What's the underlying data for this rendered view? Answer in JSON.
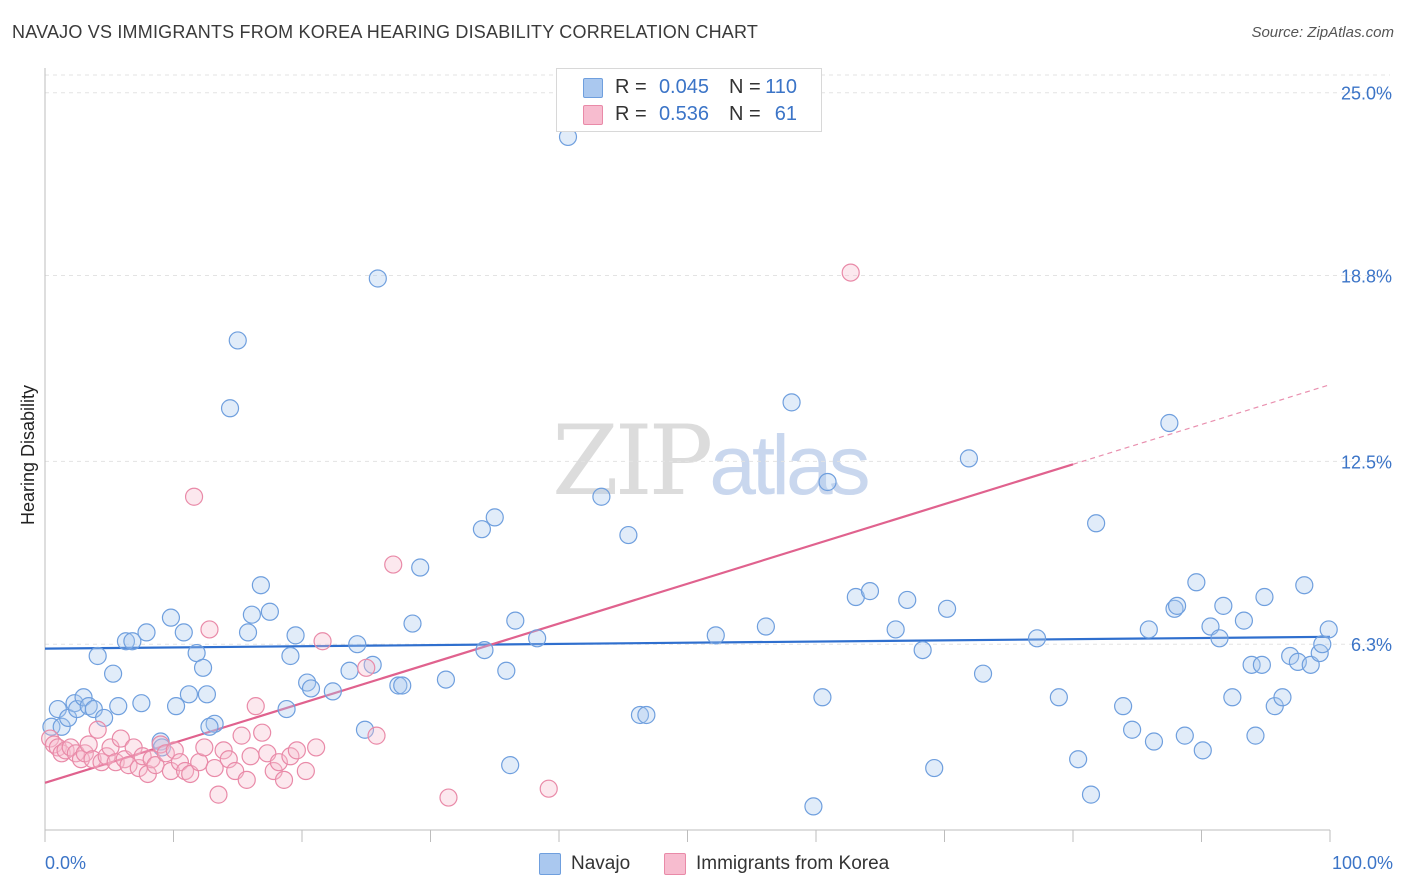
{
  "header": {
    "title": "NAVAJO VS IMMIGRANTS FROM KOREA HEARING DISABILITY CORRELATION CHART",
    "source": "Source: ZipAtlas.com"
  },
  "legend": {
    "rows": [
      {
        "r_label": "R =",
        "r_value": "0.045",
        "n_label": "N =",
        "n_value": "110",
        "color": "#aac8ef",
        "border": "#6f9fde"
      },
      {
        "r_label": "R =",
        "r_value": "0.536",
        "n_label": "N =",
        "n_value": "61",
        "color": "#f7bccf",
        "border": "#e98aa8"
      }
    ]
  },
  "watermark": {
    "part1": "ZIP",
    "part2": "atlas"
  },
  "bottom_legend": [
    {
      "label": "Navajo",
      "color": "#aac8ef",
      "border": "#6f9fde"
    },
    {
      "label": "Immigrants from Korea",
      "color": "#f7bccf",
      "border": "#e98aa8"
    }
  ],
  "chart_data": {
    "type": "scatter",
    "title": "NAVAJO VS IMMIGRANTS FROM KOREA HEARING DISABILITY CORRELATION CHART",
    "xlabel": "",
    "ylabel": "Hearing Disability",
    "xlim": [
      0,
      100
    ],
    "ylim": [
      0,
      25.6
    ],
    "x_tick_labels": [
      "0.0%",
      "100.0%"
    ],
    "y_ticks": [
      6.3,
      12.5,
      18.8,
      25.0
    ],
    "y_tick_labels": [
      "6.3%",
      "12.5%",
      "18.8%",
      "25.0%"
    ],
    "grid": "horizontal dashed",
    "series": [
      {
        "name": "Navajo",
        "color": "#6f9fde",
        "trend": {
          "x": [
            0,
            100
          ],
          "y": [
            6.15,
            6.55
          ],
          "color": "#2f6fce"
        },
        "points": [
          [
            0.5,
            3.5
          ],
          [
            1,
            4.1
          ],
          [
            1.3,
            3.5
          ],
          [
            1.8,
            3.8
          ],
          [
            2.3,
            4.3
          ],
          [
            2.5,
            4.1
          ],
          [
            3,
            4.5
          ],
          [
            3.4,
            4.2
          ],
          [
            3.8,
            4.1
          ],
          [
            4.1,
            5.9
          ],
          [
            4.6,
            3.8
          ],
          [
            5.3,
            5.3
          ],
          [
            5.7,
            4.2
          ],
          [
            6.3,
            6.4
          ],
          [
            6.8,
            6.4
          ],
          [
            7.5,
            4.3
          ],
          [
            7.9,
            6.7
          ],
          [
            9,
            3.0
          ],
          [
            9.1,
            2.8
          ],
          [
            9.8,
            7.2
          ],
          [
            10.2,
            4.2
          ],
          [
            10.8,
            6.7
          ],
          [
            11.2,
            4.6
          ],
          [
            11.8,
            6.0
          ],
          [
            12.3,
            5.5
          ],
          [
            12.6,
            4.6
          ],
          [
            13.2,
            3.6
          ],
          [
            14.4,
            14.3
          ],
          [
            15,
            16.6
          ],
          [
            15.8,
            6.7
          ],
          [
            16.1,
            7.3
          ],
          [
            16.8,
            8.3
          ],
          [
            17.5,
            7.4
          ],
          [
            18.8,
            4.1
          ],
          [
            19.1,
            5.9
          ],
          [
            19.5,
            6.6
          ],
          [
            20.4,
            5.0
          ],
          [
            20.7,
            4.8
          ],
          [
            22.4,
            4.7
          ],
          [
            23.7,
            5.4
          ],
          [
            24.3,
            6.3
          ],
          [
            24.9,
            3.4
          ],
          [
            25.5,
            5.6
          ],
          [
            25.9,
            18.7
          ],
          [
            27.5,
            4.9
          ],
          [
            27.8,
            4.9
          ],
          [
            28.6,
            7.0
          ],
          [
            29.2,
            8.9
          ],
          [
            31.2,
            5.1
          ],
          [
            34,
            10.2
          ],
          [
            34.2,
            6.1
          ],
          [
            35,
            10.6
          ],
          [
            35.9,
            5.4
          ],
          [
            36.2,
            2.2
          ],
          [
            36.6,
            7.1
          ],
          [
            38.3,
            6.5
          ],
          [
            40.7,
            23.5
          ],
          [
            43.3,
            11.3
          ],
          [
            45.4,
            10.0
          ],
          [
            46.3,
            3.9
          ],
          [
            46.8,
            3.9
          ],
          [
            52.2,
            6.6
          ],
          [
            56.1,
            6.9
          ],
          [
            58.1,
            14.5
          ],
          [
            59.8,
            0.8
          ],
          [
            60.5,
            4.5
          ],
          [
            60.9,
            11.8
          ],
          [
            63.1,
            7.9
          ],
          [
            64.2,
            8.1
          ],
          [
            66.2,
            6.8
          ],
          [
            67.1,
            7.8
          ],
          [
            68.3,
            6.1
          ],
          [
            69.2,
            2.1
          ],
          [
            70.2,
            7.5
          ],
          [
            71.9,
            12.6
          ],
          [
            73,
            5.3
          ],
          [
            77.2,
            6.5
          ],
          [
            78.9,
            4.5
          ],
          [
            80.4,
            2.4
          ],
          [
            81.4,
            1.2
          ],
          [
            81.8,
            10.4
          ],
          [
            83.9,
            4.2
          ],
          [
            84.6,
            3.4
          ],
          [
            85.9,
            6.8
          ],
          [
            86.3,
            3.0
          ],
          [
            87.5,
            13.8
          ],
          [
            87.9,
            7.5
          ],
          [
            88.1,
            7.6
          ],
          [
            88.7,
            3.2
          ],
          [
            89.6,
            8.4
          ],
          [
            90.1,
            2.7
          ],
          [
            90.7,
            6.9
          ],
          [
            91.4,
            6.5
          ],
          [
            91.7,
            7.6
          ],
          [
            92.4,
            4.5
          ],
          [
            93.3,
            7.1
          ],
          [
            93.9,
            5.6
          ],
          [
            94.2,
            3.2
          ],
          [
            94.7,
            5.6
          ],
          [
            94.9,
            7.9
          ],
          [
            95.7,
            4.2
          ],
          [
            96.3,
            4.5
          ],
          [
            96.9,
            5.9
          ],
          [
            97.5,
            5.7
          ],
          [
            98,
            8.3
          ],
          [
            98.5,
            5.6
          ],
          [
            99.2,
            6.0
          ],
          [
            99.4,
            6.3
          ],
          [
            99.9,
            6.8
          ],
          [
            12.8,
            3.5
          ]
        ]
      },
      {
        "name": "Immigrants from Korea",
        "color": "#e98aa8",
        "trend": {
          "x": [
            0,
            80
          ],
          "y": [
            1.6,
            12.4
          ],
          "color": "#e0628e",
          "dashed_extension": {
            "x": [
              80,
              100
            ],
            "y": [
              12.4,
              15.1
            ]
          }
        },
        "points": [
          [
            0.4,
            3.1
          ],
          [
            0.7,
            2.9
          ],
          [
            1,
            2.8
          ],
          [
            1.3,
            2.6
          ],
          [
            1.6,
            2.7
          ],
          [
            2,
            2.8
          ],
          [
            2.4,
            2.6
          ],
          [
            2.8,
            2.4
          ],
          [
            3.1,
            2.6
          ],
          [
            3.4,
            2.9
          ],
          [
            3.7,
            2.4
          ],
          [
            4.1,
            3.4
          ],
          [
            4.4,
            2.3
          ],
          [
            4.8,
            2.5
          ],
          [
            5.1,
            2.8
          ],
          [
            5.5,
            2.3
          ],
          [
            5.9,
            3.1
          ],
          [
            6.2,
            2.4
          ],
          [
            6.5,
            2.2
          ],
          [
            6.9,
            2.8
          ],
          [
            7.3,
            2.1
          ],
          [
            7.6,
            2.5
          ],
          [
            8,
            1.9
          ],
          [
            8.3,
            2.4
          ],
          [
            8.6,
            2.2
          ],
          [
            9,
            2.9
          ],
          [
            9.4,
            2.6
          ],
          [
            9.8,
            2.0
          ],
          [
            10.1,
            2.7
          ],
          [
            10.5,
            2.3
          ],
          [
            10.9,
            2.0
          ],
          [
            11.3,
            1.9
          ],
          [
            11.6,
            11.3
          ],
          [
            12,
            2.3
          ],
          [
            12.4,
            2.8
          ],
          [
            12.8,
            6.8
          ],
          [
            13.2,
            2.1
          ],
          [
            13.5,
            1.2
          ],
          [
            13.9,
            2.7
          ],
          [
            14.3,
            2.4
          ],
          [
            14.8,
            2.0
          ],
          [
            15.3,
            3.2
          ],
          [
            15.7,
            1.7
          ],
          [
            16,
            2.5
          ],
          [
            16.4,
            4.2
          ],
          [
            16.9,
            3.3
          ],
          [
            17.3,
            2.6
          ],
          [
            17.8,
            2.0
          ],
          [
            18.2,
            2.3
          ],
          [
            18.6,
            1.7
          ],
          [
            19.1,
            2.5
          ],
          [
            19.6,
            2.7
          ],
          [
            20.3,
            2.0
          ],
          [
            21.1,
            2.8
          ],
          [
            21.6,
            6.4
          ],
          [
            25,
            5.5
          ],
          [
            25.8,
            3.2
          ],
          [
            27.1,
            9.0
          ],
          [
            31.4,
            1.1
          ],
          [
            39.2,
            1.4
          ],
          [
            62.7,
            18.9
          ]
        ]
      }
    ]
  }
}
